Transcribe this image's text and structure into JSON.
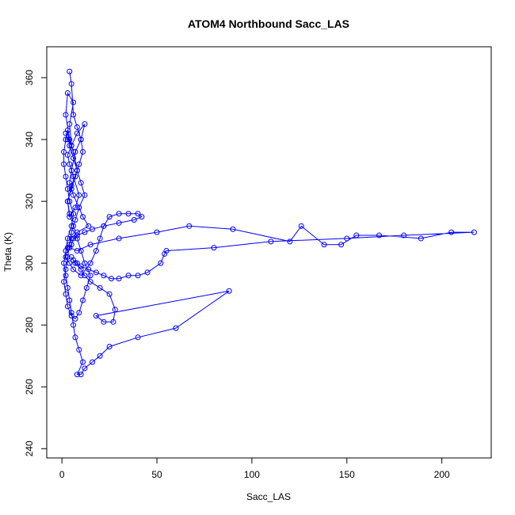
{
  "chart_data": {
    "type": "scatter",
    "title": "ATOM4 Northbound Sacc_LAS",
    "xlabel": "Sacc_LAS",
    "ylabel": "Theta (K)",
    "xlim": [
      -8,
      226
    ],
    "ylim": [
      237,
      370
    ],
    "x_ticks": [
      0,
      50,
      100,
      150,
      200
    ],
    "y_ticks": [
      240,
      260,
      280,
      300,
      320,
      340,
      360
    ],
    "grid": false,
    "legend": "none",
    "series_color": "#0000ff",
    "marker": "open-circle",
    "connected": true,
    "series": [
      {
        "x": [
          2,
          3,
          5,
          4,
          6,
          3,
          2,
          4,
          6,
          8,
          5,
          3,
          4,
          7,
          9,
          6,
          4,
          3,
          5,
          8,
          12,
          10,
          7,
          5,
          4,
          6,
          9,
          11,
          14,
          8,
          5,
          3,
          2,
          4,
          6,
          10,
          15,
          18,
          20,
          22,
          25,
          30,
          35,
          40,
          42,
          38,
          30,
          22,
          16,
          12,
          8,
          6,
          5,
          4,
          8,
          15,
          30,
          50,
          67,
          90,
          120,
          126,
          138,
          147,
          155,
          167,
          189,
          205,
          217,
          180,
          150,
          110,
          80,
          55,
          54,
          52,
          45,
          40,
          35,
          30,
          26,
          22,
          18,
          14,
          10,
          8,
          6,
          5,
          7,
          10,
          12,
          15,
          20,
          25,
          28,
          27,
          22,
          18,
          88,
          60,
          40,
          25,
          20,
          16,
          12,
          10,
          8,
          11,
          9,
          7,
          6,
          5,
          4,
          3,
          2,
          1,
          2,
          3,
          5,
          6,
          4,
          3,
          2,
          1,
          1,
          2,
          3,
          4,
          6,
          8,
          10,
          12,
          9,
          7,
          5,
          4,
          3,
          2,
          1,
          2,
          3,
          5,
          7,
          9,
          11,
          13,
          15,
          12,
          10,
          8,
          6,
          4,
          3,
          5,
          7,
          9,
          11,
          10,
          8,
          6,
          5,
          4
        ],
        "y": [
          342,
          340,
          338,
          345,
          352,
          355,
          348,
          340,
          336,
          330,
          325,
          320,
          315,
          318,
          322,
          328,
          332,
          335,
          338,
          342,
          345,
          340,
          336,
          330,
          326,
          322,
          318,
          315,
          312,
          310,
          308,
          305,
          302,
          300,
          298,
          296,
          300,
          304,
          308,
          312,
          315,
          316,
          316,
          316,
          315,
          314,
          313,
          312,
          311,
          310,
          309,
          308,
          306,
          305,
          304,
          306,
          308,
          310,
          312,
          311,
          307,
          312,
          306,
          306,
          309,
          309,
          308,
          310,
          310,
          309,
          308,
          307,
          305,
          304,
          303,
          300,
          297,
          296,
          296,
          295,
          295,
          296,
          297,
          298,
          299,
          300,
          301,
          302,
          300,
          298,
          296,
          294,
          292,
          290,
          285,
          281,
          281,
          283,
          291,
          279,
          276,
          273,
          270,
          268,
          266,
          264,
          264,
          268,
          272,
          276,
          280,
          284,
          288,
          292,
          296,
          300,
          304,
          308,
          312,
          316,
          320,
          324,
          328,
          332,
          336,
          340,
          343,
          338,
          334,
          330,
          326,
          322,
          318,
          314,
          310,
          306,
          302,
          298,
          294,
          290,
          286,
          283,
          282,
          284,
          288,
          292,
          296,
          300,
          304,
          308,
          312,
          316,
          320,
          324,
          328,
          332,
          336,
          340,
          344,
          348,
          358,
          362
        ]
      }
    ]
  }
}
